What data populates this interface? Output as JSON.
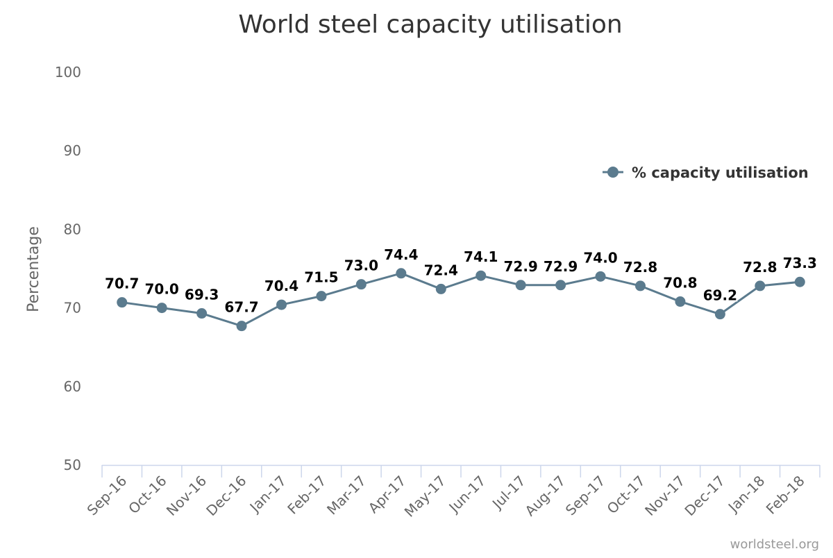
{
  "chart_data": {
    "type": "line",
    "title": "World steel capacity utilisation",
    "xlabel": "",
    "ylabel": "Percentage",
    "categories": [
      "Sep-16",
      "Oct-16",
      "Nov-16",
      "Dec-16",
      "Jan-17",
      "Feb-17",
      "Mar-17",
      "Apr-17",
      "May-17",
      "Jun-17",
      "Jul-17",
      "Aug-17",
      "Sep-17",
      "Oct-17",
      "Nov-17",
      "Dec-17",
      "Jan-18",
      "Feb-18"
    ],
    "series": [
      {
        "name": "% capacity utilisation",
        "color": "#5b7b8e",
        "values": [
          70.7,
          70.0,
          69.3,
          67.7,
          70.4,
          71.5,
          73.0,
          74.4,
          72.4,
          74.1,
          72.9,
          72.9,
          74.0,
          72.8,
          70.8,
          69.2,
          72.8,
          73.3
        ],
        "data_labels": [
          "70.7",
          "70.0",
          "69.3",
          "67.7",
          "70.4",
          "71.5",
          "73.0",
          "74.4",
          "72.4",
          "74.1",
          "72.9",
          "72.9",
          "74.0",
          "72.8",
          "70.8",
          "69.2",
          "72.8",
          "73.3"
        ]
      }
    ],
    "ylim": [
      50,
      100
    ],
    "yticks": [
      "50",
      "60",
      "70",
      "80",
      "90",
      "100"
    ],
    "grid": false,
    "legend_position": "top-right"
  },
  "credit": "worldsteel.org"
}
